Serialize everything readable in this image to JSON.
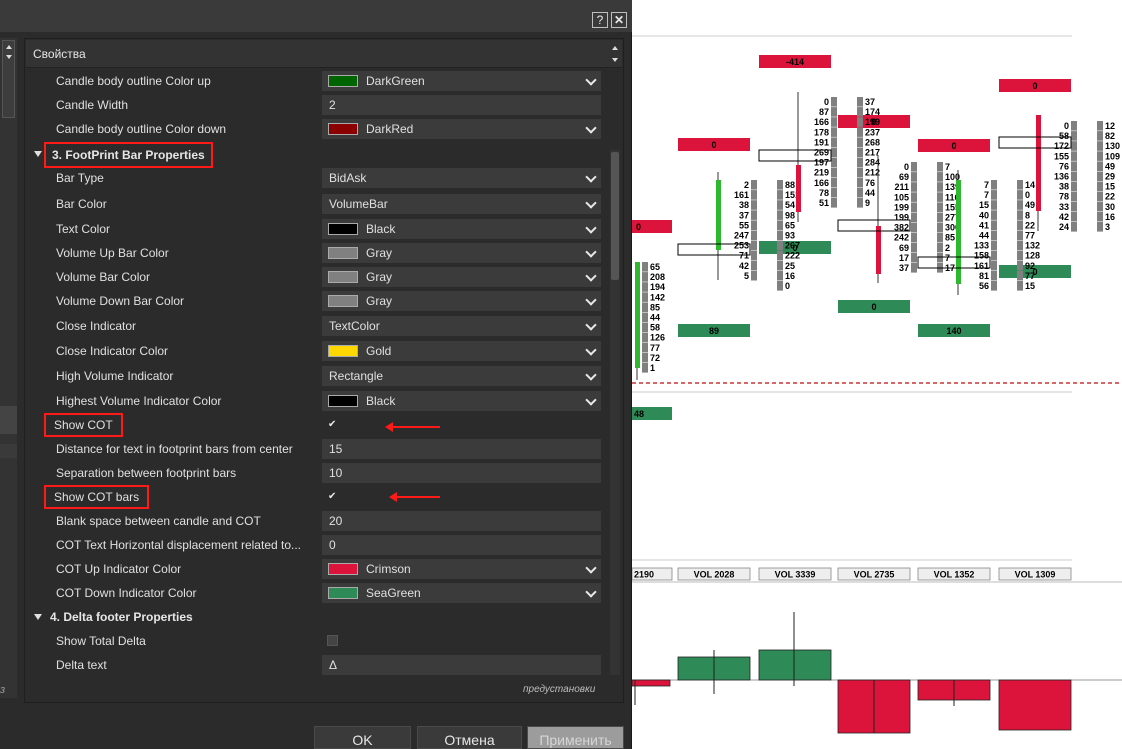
{
  "dialog": {
    "help_label": "?",
    "close_label": "✕",
    "panel_title": "Свойства",
    "left_fragment": "з",
    "preset_link": "предустановки",
    "ok_label": "OK",
    "cancel_label": "Отмена",
    "apply_label": "Применить"
  },
  "props": {
    "r0": {
      "label": "Candle body outline Color up",
      "value": "DarkGreen",
      "swatch": "#006400"
    },
    "r1": {
      "label": "Candle Width",
      "value": "2"
    },
    "r2": {
      "label": "Candle body outline Color down",
      "value": "DarkRed",
      "swatch": "#8b0000"
    },
    "sec3": {
      "label": "3. FootPrint Bar Properties"
    },
    "r3": {
      "label": "Bar Type",
      "value": "BidAsk"
    },
    "r4": {
      "label": "Bar Color",
      "value": "VolumeBar"
    },
    "r5": {
      "label": "Text Color",
      "value": "Black",
      "swatch": "#000000"
    },
    "r6": {
      "label": "Volume Up Bar Color",
      "value": "Gray",
      "swatch": "#808080"
    },
    "r7": {
      "label": "Volume Bar Color",
      "value": "Gray",
      "swatch": "#808080"
    },
    "r8": {
      "label": "Volume Down Bar Color",
      "value": "Gray",
      "swatch": "#808080"
    },
    "r9": {
      "label": "Close Indicator",
      "value": "TextColor"
    },
    "r10": {
      "label": "Close Indicator Color",
      "value": "Gold",
      "swatch": "#ffd700"
    },
    "r11": {
      "label": "High Volume Indicator",
      "value": "Rectangle"
    },
    "r12": {
      "label": "Highest Volume Indicator Color",
      "value": "Black",
      "swatch": "#000000"
    },
    "r13": {
      "label": "Show COT",
      "value": "✔"
    },
    "r14": {
      "label": "Distance for text in footprint bars from center",
      "value": "15"
    },
    "r15": {
      "label": "Separation between footprint bars",
      "value": "10"
    },
    "r16": {
      "label": "Show COT bars",
      "value": "✔"
    },
    "r17": {
      "label": "Blank space between candle and COT",
      "value": "20"
    },
    "r18": {
      "label": "COT Text Horizontal displacement related to...",
      "value": "0"
    },
    "r19": {
      "label": "COT Up Indicator Color",
      "value": "Crimson",
      "swatch": "#dc143c"
    },
    "r20": {
      "label": "COT Down Indicator Color",
      "value": "SeaGreen",
      "swatch": "#2e8b57"
    },
    "sec4": {
      "label": "4. Delta footer Properties"
    },
    "r21": {
      "label": "Show Total Delta",
      "value": ""
    },
    "r22": {
      "label": "Delta text",
      "value": "Δ"
    }
  },
  "chart": {
    "colors": {
      "up": "#2e8b57",
      "down": "#dc143c",
      "vol": "#808080",
      "candle_up": "#2eb82e",
      "candle_down": "#dc143c"
    },
    "cot_top": [
      "0",
      "-414",
      "0",
      "0",
      "0"
    ],
    "cot_bottom": [
      "48",
      "89",
      "0",
      "0",
      "140",
      "0"
    ],
    "vol_labels": [
      "2190",
      "VOL 2028",
      "VOL 3339",
      "VOL 2735",
      "VOL 1352",
      "VOL 1309"
    ],
    "bars": [
      {
        "bid": [
          "65",
          "208",
          "194",
          "142",
          "85",
          "44",
          "58",
          "126",
          "77",
          "72",
          "1"
        ],
        "ask": []
      },
      {
        "bid": [
          "2",
          "161",
          "38",
          "37",
          "55",
          "247",
          "253",
          "71",
          "42",
          "5"
        ],
        "ask": [
          "88",
          "151",
          "54",
          "98",
          "65",
          "93",
          "267",
          "222",
          "25",
          "16",
          "0"
        ]
      },
      {
        "bid": [
          "0",
          "87",
          "166",
          "178",
          "191",
          "269",
          "197",
          "219",
          "166",
          "78",
          "51"
        ],
        "ask": [
          "37",
          "174",
          "199",
          "237",
          "268",
          "217",
          "284",
          "212",
          "76",
          "44",
          "9"
        ]
      },
      {
        "bid": [
          "0",
          "69",
          "211",
          "105",
          "199",
          "199",
          "382",
          "242",
          "69",
          "17",
          "37"
        ],
        "ask": [
          "7",
          "100",
          "139",
          "116",
          "155",
          "277",
          "300",
          "85",
          "2",
          "7",
          "17"
        ]
      },
      {
        "bid": [
          "7",
          "7",
          "15",
          "40",
          "41",
          "44",
          "133",
          "158",
          "161",
          "81",
          "56"
        ],
        "ask": [
          "14",
          "0",
          "49",
          "8",
          "22",
          "77",
          "132",
          "128",
          "92",
          "77",
          "15"
        ]
      },
      {
        "bid": [
          "0",
          "58",
          "172",
          "155",
          "76",
          "136",
          "38",
          "78",
          "33",
          "42",
          "24"
        ],
        "ask": [
          "12",
          "82",
          "130",
          "109",
          "49",
          "29",
          "15",
          "22",
          "30",
          "16",
          "3"
        ]
      }
    ],
    "delta": [
      -6,
      23,
      30,
      -53,
      -20,
      -50
    ]
  }
}
